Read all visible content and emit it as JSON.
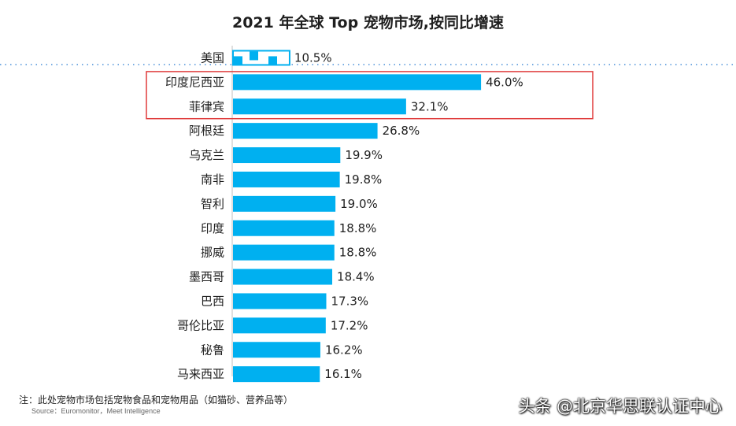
{
  "chart_data": {
    "type": "bar",
    "orientation": "horizontal",
    "title": "2021 年全球 Top 宠物市场,按同比增速",
    "categories": [
      "美国",
      "印度尼西亚",
      "菲律宾",
      "阿根廷",
      "乌克兰",
      "南非",
      "智利",
      "印度",
      "挪威",
      "墨西哥",
      "巴西",
      "哥伦比亚",
      "秘鲁",
      "马来西亚"
    ],
    "values": [
      10.5,
      46.0,
      32.1,
      26.8,
      19.9,
      19.8,
      19.0,
      18.8,
      18.8,
      18.4,
      17.3,
      17.2,
      16.2,
      16.1
    ],
    "value_labels": [
      "10.5%",
      "46.0%",
      "32.1%",
      "26.8%",
      "19.9%",
      "19.8%",
      "19.0%",
      "18.8%",
      "18.8%",
      "18.4%",
      "17.3%",
      "17.2%",
      "16.2%",
      "16.1%"
    ],
    "xlim": [
      0,
      50
    ],
    "xlabel": "",
    "ylabel": "",
    "highlighted": [
      "印度尼西亚",
      "菲律宾"
    ],
    "reference_category": "美国"
  },
  "colors": {
    "bar": "#00b0f0",
    "highlight_box": "#e03c3c",
    "dotted_line": "#4a90d9",
    "axis": "#bfbfbf"
  },
  "footnote": "注：此处宠物市场包括宠物食品和宠物用品（如猫砂、营养品等）",
  "source": "Source：Euromonitor，Meet Intelligence",
  "watermark": "头条 @北京华思联认证中心"
}
